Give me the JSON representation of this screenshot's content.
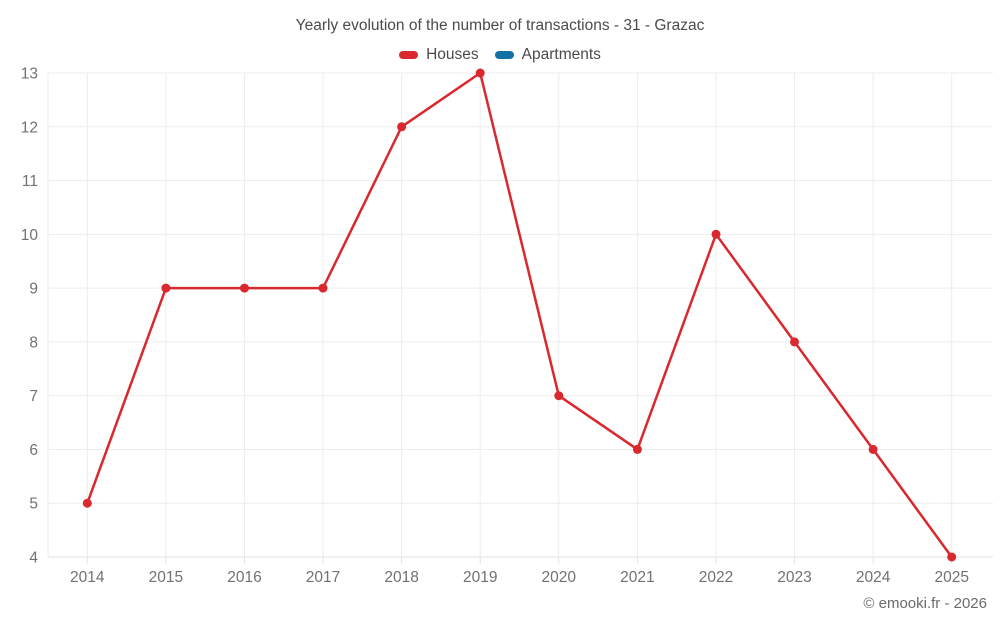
{
  "chart_data": {
    "type": "line",
    "title": "Yearly evolution of the number of transactions - 31 - Grazac",
    "categories": [
      "2014",
      "2015",
      "2016",
      "2017",
      "2018",
      "2019",
      "2020",
      "2021",
      "2022",
      "2023",
      "2024",
      "2025"
    ],
    "series": [
      {
        "name": "Houses",
        "color": "#d9282e",
        "values": [
          5,
          9,
          9,
          9,
          12,
          13,
          7,
          6,
          10,
          8,
          6,
          4
        ]
      },
      {
        "name": "Apartments",
        "color": "#1271a3",
        "values": []
      }
    ],
    "ylim": [
      4,
      13
    ],
    "yticks": [
      4,
      5,
      6,
      7,
      8,
      9,
      10,
      11,
      12,
      13
    ],
    "grid": true,
    "legend_position": "top",
    "xlabel": "",
    "ylabel": ""
  },
  "footer": {
    "copyright": "© emooki.fr - 2026"
  }
}
